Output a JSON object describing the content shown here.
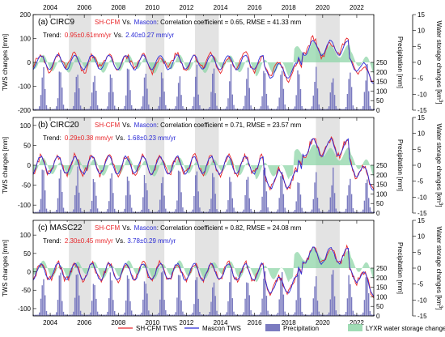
{
  "chart_data": {
    "type": "line",
    "x_range": [
      2003.0,
      2023.0
    ],
    "x_ticks": [
      "2004",
      "2006",
      "2008",
      "2010",
      "2012",
      "2014",
      "2016",
      "2018",
      "2020",
      "2022"
    ],
    "shaded_periods": [
      [
        2005.1,
        2006.4
      ],
      [
        2009.6,
        2010.7
      ],
      [
        2012.5,
        2013.9
      ],
      [
        2019.6,
        2021.0
      ]
    ],
    "axes": {
      "left_label": "TWS changes  [mm]",
      "right1_label": "Precipitation  [mm]",
      "right2_label_main": "Water storage changes [km",
      "right2_label_sup": "3",
      "right2_label_end": "]"
    },
    "legend": [
      {
        "name": "SH-CFM TWS",
        "color": "#e8262a",
        "kind": "line"
      },
      {
        "name": "Mascon TWS",
        "color": "#2b2bd6",
        "kind": "line"
      },
      {
        "name": "Precipitation",
        "color": "#7b7bc0",
        "kind": "bar"
      },
      {
        "name": "LYXR water storage changes",
        "color": "#8fd6a8",
        "kind": "area"
      }
    ],
    "panels": [
      {
        "id": "a",
        "title": "(a) CIRC9",
        "series_a": "SH-CFM",
        "vs": "Vs.",
        "series_b": "Mascon",
        "stats": ": Correlation coefficient = 0.65, RMSE = 41.33 mm",
        "trend_label": "Trend:",
        "trend_a": "0.95±0.61mm/yr",
        "trend_b": "2.40±0.27 mm/yr",
        "left_ticks": [
          "-200",
          "-100",
          "0",
          "100",
          "200"
        ],
        "left_range": [
          -200,
          200
        ],
        "right1_ticks": [
          "0",
          "50",
          "100",
          "150",
          "200",
          "250"
        ],
        "right1_range": [
          0,
          500
        ],
        "right2_ticks": [
          "-15",
          "-10",
          "-5",
          "0",
          "5",
          "10",
          "15"
        ],
        "right2_range": [
          -15,
          15
        ]
      },
      {
        "id": "b",
        "title": "(b) CIRC20",
        "series_a": "SH-CFM",
        "vs": "Vs.",
        "series_b": "Mascon",
        "stats": ": Correlation coefficient = 0.71, RMSE = 23.57 mm",
        "trend_label": "Trend:",
        "trend_a": "0.29±0.38 mm/yr",
        "trend_b": "1.68±0.23 mm/yr",
        "left_ticks": [
          "-100",
          "-50",
          "0",
          "50",
          "100"
        ],
        "left_range": [
          -120,
          120
        ],
        "right1_ticks": [
          "0",
          "50",
          "100",
          "150",
          "200",
          "250"
        ],
        "right1_range": [
          0,
          500
        ],
        "right2_ticks": [
          "-15",
          "-10",
          "-5",
          "0",
          "5",
          "10",
          "15"
        ],
        "right2_range": [
          -15,
          15
        ]
      },
      {
        "id": "c",
        "title": "(c) MASC22",
        "series_a": "SH-CFM",
        "vs": "Vs.",
        "series_b": "Mascon",
        "stats": ": Correlation coefficient = 0.82, RMSE = 24.08 mm",
        "trend_label": "Trend:",
        "trend_a": "2.30±0.45 mm/yr",
        "trend_b": "3.78±0.29 mm/yr",
        "left_ticks": [
          "-100",
          "-50",
          "0",
          "50",
          "100"
        ],
        "left_range": [
          -120,
          140
        ],
        "right1_ticks": [
          "0",
          "50",
          "100",
          "150",
          "200",
          "250"
        ],
        "right1_range": [
          0,
          500
        ],
        "right2_ticks": [
          "-15",
          "-10",
          "-5",
          "0",
          "5",
          "10",
          "15"
        ],
        "right2_range": [
          -15,
          15
        ]
      }
    ]
  }
}
